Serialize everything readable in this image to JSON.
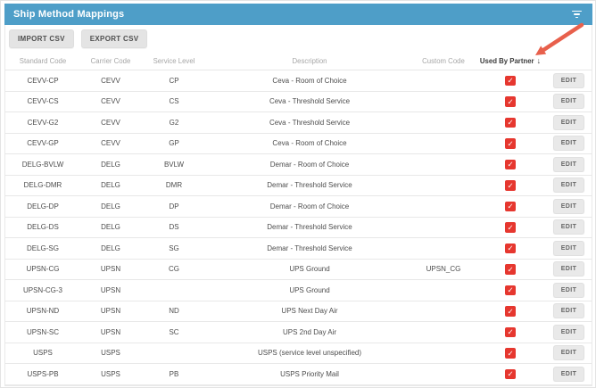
{
  "panel": {
    "title": "Ship Method Mappings"
  },
  "toolbar": {
    "import_label": "IMPORT CSV",
    "export_label": "EXPORT CSV"
  },
  "table": {
    "columns": [
      "Standard Code",
      "Carrier Code",
      "Service Level",
      "Description",
      "Custom Code",
      "Used By Partner"
    ],
    "sort": {
      "column": "Used By Partner",
      "direction": "descending",
      "arrow": "↓"
    },
    "edit_label": "EDIT",
    "checkmark": "✓",
    "rows": [
      {
        "standard_code": "CEVV-CP",
        "carrier_code": "CEVV",
        "service_level": "CP",
        "description": "Ceva - Room of Choice",
        "custom_code": "",
        "used_by_partner": true
      },
      {
        "standard_code": "CEVV-CS",
        "carrier_code": "CEVV",
        "service_level": "CS",
        "description": "Ceva - Threshold Service",
        "custom_code": "",
        "used_by_partner": true
      },
      {
        "standard_code": "CEVV-G2",
        "carrier_code": "CEVV",
        "service_level": "G2",
        "description": "Ceva - Threshold Service",
        "custom_code": "",
        "used_by_partner": true
      },
      {
        "standard_code": "CEVV-GP",
        "carrier_code": "CEVV",
        "service_level": "GP",
        "description": "Ceva - Room of Choice",
        "custom_code": "",
        "used_by_partner": true
      },
      {
        "standard_code": "DELG-BVLW",
        "carrier_code": "DELG",
        "service_level": "BVLW",
        "description": "Demar - Room of Choice",
        "custom_code": "",
        "used_by_partner": true
      },
      {
        "standard_code": "DELG-DMR",
        "carrier_code": "DELG",
        "service_level": "DMR",
        "description": "Demar - Threshold Service",
        "custom_code": "",
        "used_by_partner": true
      },
      {
        "standard_code": "DELG-DP",
        "carrier_code": "DELG",
        "service_level": "DP",
        "description": "Demar - Room of Choice",
        "custom_code": "",
        "used_by_partner": true
      },
      {
        "standard_code": "DELG-DS",
        "carrier_code": "DELG",
        "service_level": "DS",
        "description": "Demar - Threshold Service",
        "custom_code": "",
        "used_by_partner": true
      },
      {
        "standard_code": "DELG-SG",
        "carrier_code": "DELG",
        "service_level": "SG",
        "description": "Demar - Threshold Service",
        "custom_code": "",
        "used_by_partner": true
      },
      {
        "standard_code": "UPSN-CG",
        "carrier_code": "UPSN",
        "service_level": "CG",
        "description": "UPS Ground",
        "custom_code": "UPSN_CG",
        "used_by_partner": true
      },
      {
        "standard_code": "UPSN-CG-3",
        "carrier_code": "UPSN",
        "service_level": "",
        "description": "UPS Ground",
        "custom_code": "",
        "used_by_partner": true
      },
      {
        "standard_code": "UPSN-ND",
        "carrier_code": "UPSN",
        "service_level": "ND",
        "description": "UPS Next Day Air",
        "custom_code": "",
        "used_by_partner": true
      },
      {
        "standard_code": "UPSN-SC",
        "carrier_code": "UPSN",
        "service_level": "SC",
        "description": "UPS 2nd Day Air",
        "custom_code": "",
        "used_by_partner": true
      },
      {
        "standard_code": "USPS",
        "carrier_code": "USPS",
        "service_level": "",
        "description": "USPS (service level unspecified)",
        "custom_code": "",
        "used_by_partner": true
      },
      {
        "standard_code": "USPS-PB",
        "carrier_code": "USPS",
        "service_level": "PB",
        "description": "USPS Priority Mail",
        "custom_code": "",
        "used_by_partner": true
      }
    ]
  },
  "annotation": {
    "type": "arrow",
    "color": "#e8604c",
    "points_at": "used-by-partner-sort-arrow"
  },
  "colors": {
    "titlebar_blue": "#4e9ec8",
    "checkbox_red": "#e6372f",
    "annotation_red": "#e8604c",
    "button_gray": "#e4e4e4"
  }
}
